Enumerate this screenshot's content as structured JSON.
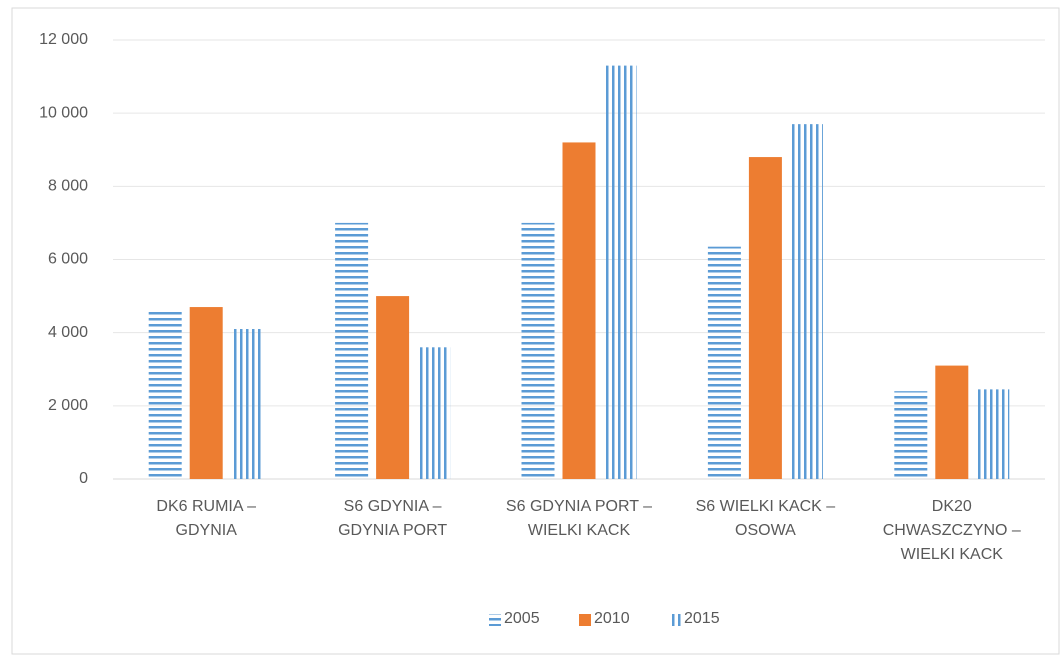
{
  "chart_data": {
    "type": "bar",
    "categories": [
      "DK6 RUMIA – GDYNIA",
      "S6 GDYNIA – GDYNIA PORT",
      "S6 GDYNIA PORT – WIELKI KACK",
      "S6 WIELKI KACK – OSOWA",
      "DK20 CHWASZCZYNO – WIELKI KACK"
    ],
    "series": [
      {
        "name": "2005",
        "color": "#5b9bd5",
        "pattern": "horizontal",
        "values": [
          4600,
          7000,
          7000,
          6350,
          2400
        ]
      },
      {
        "name": "2010",
        "color": "#ed7d31",
        "pattern": "solid",
        "values": [
          4700,
          5000,
          9200,
          8800,
          3100
        ]
      },
      {
        "name": "2015",
        "color": "#5b9bd5",
        "pattern": "vertical",
        "values": [
          4100,
          3600,
          11300,
          9700,
          2450
        ]
      }
    ],
    "ylim": [
      0,
      12000
    ],
    "yticks": [
      0,
      {
        "value": 2000,
        "label": "2 000"
      },
      {
        "value": 4000,
        "label": "4 000"
      },
      {
        "value": 6000,
        "label": "6 000"
      },
      {
        "value": 8000,
        "label": "8 000"
      },
      {
        "value": 10000,
        "label": "10 000"
      },
      {
        "value": 12000,
        "label": "12 000"
      }
    ],
    "grid": true,
    "legend": "bottom"
  }
}
